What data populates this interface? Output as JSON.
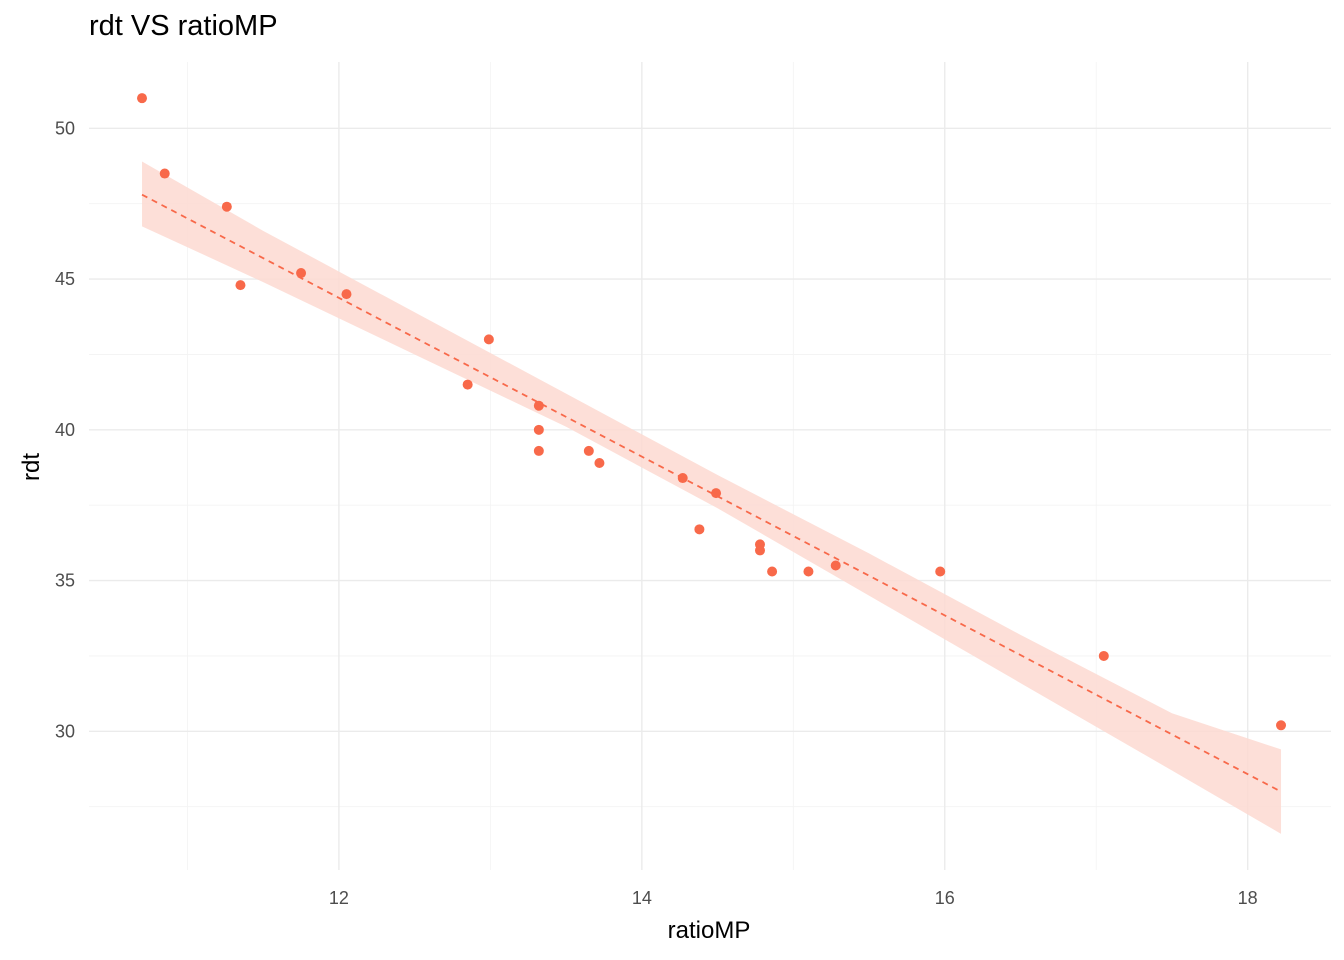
{
  "chart_data": {
    "type": "scatter",
    "title": "rdt VS ratioMP",
    "xlabel": "ratioMP",
    "ylabel": "rdt",
    "xlim": [
      10.35,
      18.55
    ],
    "ylim": [
      25.4,
      52.2
    ],
    "x_ticks": [
      12,
      14,
      16,
      18
    ],
    "x_minor_ticks": [
      11,
      13,
      15,
      17
    ],
    "y_ticks": [
      30,
      35,
      40,
      45,
      50
    ],
    "y_minor_ticks": [
      27.5,
      32.5,
      37.5,
      42.5,
      47.5
    ],
    "grid": true,
    "legend": "none",
    "colors": {
      "points": "#f8694a",
      "fit_line": "#f8694a",
      "confidence_band": "#fdd9d1"
    },
    "series": [
      {
        "type": "scatter",
        "points": [
          {
            "x": 10.7,
            "y": 51.0
          },
          {
            "x": 10.85,
            "y": 48.5
          },
          {
            "x": 11.26,
            "y": 47.4
          },
          {
            "x": 11.35,
            "y": 44.8
          },
          {
            "x": 11.75,
            "y": 45.2
          },
          {
            "x": 12.05,
            "y": 44.5
          },
          {
            "x": 12.85,
            "y": 41.5
          },
          {
            "x": 12.99,
            "y": 43.0
          },
          {
            "x": 13.32,
            "y": 40.8
          },
          {
            "x": 13.32,
            "y": 40.0
          },
          {
            "x": 13.32,
            "y": 39.3
          },
          {
            "x": 13.65,
            "y": 39.3
          },
          {
            "x": 13.72,
            "y": 38.9
          },
          {
            "x": 14.27,
            "y": 38.4
          },
          {
            "x": 14.38,
            "y": 36.7
          },
          {
            "x": 14.49,
            "y": 37.9
          },
          {
            "x": 14.78,
            "y": 36.2
          },
          {
            "x": 14.78,
            "y": 36.0
          },
          {
            "x": 14.86,
            "y": 35.3
          },
          {
            "x": 15.1,
            "y": 35.3
          },
          {
            "x": 15.28,
            "y": 35.5
          },
          {
            "x": 15.97,
            "y": 35.3
          },
          {
            "x": 17.05,
            "y": 32.5
          },
          {
            "x": 18.22,
            "y": 30.2
          }
        ]
      },
      {
        "type": "line",
        "style": "dashed",
        "method": "linear fit",
        "x": [
          10.7,
          18.22
        ],
        "y": [
          47.8,
          28.0
        ]
      },
      {
        "type": "area",
        "method": "confidence band",
        "x": [
          10.7,
          11.5,
          12.5,
          13.5,
          14.5,
          15.5,
          16.5,
          17.5,
          18.22
        ],
        "lower": [
          46.75,
          44.9,
          42.5,
          40.1,
          37.4,
          34.5,
          31.6,
          28.7,
          26.6
        ],
        "upper": [
          48.9,
          46.6,
          43.9,
          41.2,
          38.5,
          35.9,
          33.2,
          30.6,
          29.4
        ]
      }
    ]
  }
}
